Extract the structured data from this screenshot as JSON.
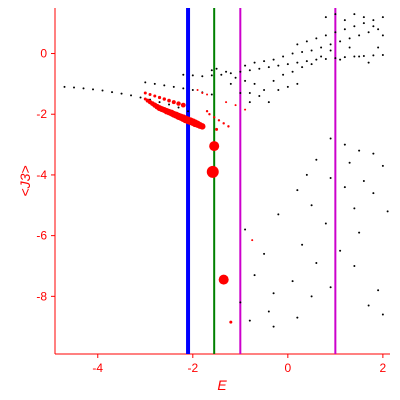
{
  "chart_data": {
    "type": "scatter",
    "xlabel": "E",
    "ylabel": "<J3>",
    "xlim": [
      -4.9,
      2.15
    ],
    "ylim": [
      -9.9,
      1.5
    ],
    "xticks": [
      -4,
      -2,
      0,
      2
    ],
    "xtick_labels": [
      "-4",
      "-2",
      "0",
      "2"
    ],
    "yticks": [
      0,
      -2,
      -4,
      -6,
      -8
    ],
    "ytick_labels": [
      "0",
      "-2",
      "-4",
      "-6",
      "-8"
    ],
    "grid": false,
    "axis_color": "#ff0000",
    "vertical_lines": [
      {
        "x": -2.1,
        "color": "#0000ff"
      },
      {
        "x": -1.55,
        "color": "#008000"
      },
      {
        "x": -1.0,
        "color": "#cc00cc"
      },
      {
        "x": 1.0,
        "color": "#cc00cc"
      }
    ],
    "series": [
      {
        "color": "#000000",
        "marker": "small-dot",
        "description_points": "black",
        "points": [
          [
            -4.7,
            -1.1
          ],
          [
            -4.5,
            -1.12
          ],
          [
            -4.3,
            -1.15
          ],
          [
            -4.1,
            -1.18
          ],
          [
            -3.9,
            -1.22
          ],
          [
            -3.7,
            -1.27
          ],
          [
            -3.5,
            -1.32
          ],
          [
            -3.3,
            -1.38
          ],
          [
            -3.1,
            -1.45
          ],
          [
            -2.9,
            -1.52
          ],
          [
            -2.7,
            -1.6
          ],
          [
            -2.5,
            -1.68
          ],
          [
            -2.3,
            -1.78
          ],
          [
            -2.1,
            -1.9
          ],
          [
            -3.0,
            -0.95
          ],
          [
            -2.8,
            -1.0
          ],
          [
            -2.6,
            -1.05
          ],
          [
            -2.4,
            -1.1
          ],
          [
            -2.2,
            -1.15
          ],
          [
            -2.0,
            -1.2
          ],
          [
            -1.8,
            -1.28
          ],
          [
            -1.6,
            -1.35
          ],
          [
            -2.2,
            -0.7
          ],
          [
            -2.0,
            -0.72
          ],
          [
            -1.8,
            -0.75
          ],
          [
            -1.6,
            -0.72
          ],
          [
            -1.4,
            -0.7
          ],
          [
            -1.2,
            -0.65
          ],
          [
            -1.0,
            -0.6
          ],
          [
            -0.8,
            -0.55
          ],
          [
            -0.6,
            -0.5
          ],
          [
            -0.4,
            -0.45
          ],
          [
            -0.2,
            -0.4
          ],
          [
            0.0,
            -0.35
          ],
          [
            0.2,
            -0.3
          ],
          [
            0.4,
            -0.25
          ],
          [
            0.6,
            -0.2
          ],
          [
            0.8,
            -0.18
          ],
          [
            1.0,
            -0.15
          ],
          [
            1.2,
            -0.12
          ],
          [
            1.4,
            -0.1
          ],
          [
            1.6,
            -0.08
          ],
          [
            1.8,
            -0.06
          ],
          [
            2.0,
            -0.05
          ],
          [
            -1.5,
            -0.5
          ],
          [
            -1.3,
            -0.6
          ],
          [
            -1.1,
            -0.8
          ],
          [
            -0.9,
            -0.9
          ],
          [
            -0.7,
            -1.0
          ],
          [
            -0.5,
            -1.2
          ],
          [
            -0.3,
            -0.9
          ],
          [
            -0.1,
            -0.7
          ],
          [
            0.1,
            -0.6
          ],
          [
            0.3,
            -0.45
          ],
          [
            0.5,
            -0.35
          ],
          [
            -0.9,
            -0.4
          ],
          [
            -0.7,
            -0.3
          ],
          [
            -0.5,
            -0.25
          ],
          [
            -0.3,
            -0.2
          ],
          [
            -0.1,
            -0.1
          ],
          [
            0.1,
            0.0
          ],
          [
            0.3,
            0.05
          ],
          [
            0.5,
            0.1
          ],
          [
            0.7,
            0.2
          ],
          [
            0.9,
            0.3
          ],
          [
            1.1,
            0.4
          ],
          [
            1.3,
            0.5
          ],
          [
            1.5,
            0.6
          ],
          [
            1.7,
            0.7
          ],
          [
            1.9,
            0.8
          ],
          [
            0.2,
            0.3
          ],
          [
            0.4,
            0.4
          ],
          [
            0.6,
            0.5
          ],
          [
            0.8,
            0.6
          ],
          [
            1.0,
            0.7
          ],
          [
            1.2,
            0.8
          ],
          [
            1.4,
            0.9
          ],
          [
            1.6,
            1.0
          ],
          [
            1.8,
            1.1
          ],
          [
            2.0,
            1.2
          ],
          [
            0.8,
            1.2
          ],
          [
            1.0,
            1.3
          ],
          [
            1.2,
            1.1
          ],
          [
            1.4,
            1.3
          ],
          [
            1.6,
            1.2
          ],
          [
            1.8,
            0.9
          ],
          [
            2.0,
            0.6
          ],
          [
            1.9,
            0.2
          ],
          [
            1.7,
            -0.3
          ],
          [
            1.5,
            -0.1
          ],
          [
            1.3,
            0.2
          ],
          [
            1.1,
            -0.2
          ],
          [
            0.9,
            0.1
          ],
          [
            0.7,
            -0.1
          ],
          [
            -0.8,
            -1.3
          ],
          [
            -0.6,
            -1.4
          ],
          [
            -0.4,
            -1.6
          ],
          [
            -0.2,
            -1.2
          ],
          [
            0.0,
            -1.1
          ],
          [
            0.2,
            -1.0
          ],
          [
            -1.6,
            -0.55
          ],
          [
            -1.2,
            -1.0
          ],
          [
            -1.0,
            -1.3
          ],
          [
            -0.8,
            -1.6
          ],
          [
            0.9,
            -2.8
          ],
          [
            1.2,
            -3.0
          ],
          [
            1.5,
            -3.2
          ],
          [
            1.8,
            -3.3
          ],
          [
            0.6,
            -3.5
          ],
          [
            1.3,
            -3.6
          ],
          [
            2.0,
            -3.7
          ],
          [
            0.4,
            -4.0
          ],
          [
            0.9,
            -4.1
          ],
          [
            1.6,
            -4.2
          ],
          [
            0.2,
            -4.5
          ],
          [
            1.2,
            -4.4
          ],
          [
            1.8,
            -4.6
          ],
          [
            0.5,
            -5.0
          ],
          [
            1.4,
            -5.1
          ],
          [
            2.1,
            -5.2
          ],
          [
            -0.2,
            -5.3
          ],
          [
            0.8,
            -5.6
          ],
          [
            1.5,
            -5.9
          ],
          [
            -0.9,
            -5.8
          ],
          [
            0.3,
            -6.3
          ],
          [
            1.1,
            -6.5
          ],
          [
            -0.5,
            -6.6
          ],
          [
            0.6,
            -6.9
          ],
          [
            1.4,
            -7.0
          ],
          [
            -0.7,
            -7.3
          ],
          [
            0.1,
            -7.5
          ],
          [
            0.9,
            -7.7
          ],
          [
            -0.3,
            -7.9
          ],
          [
            0.5,
            -8.0
          ],
          [
            -1.0,
            -8.2
          ],
          [
            -0.4,
            -8.5
          ],
          [
            0.2,
            -8.7
          ],
          [
            -0.8,
            -8.8
          ],
          [
            -0.3,
            -9.0
          ],
          [
            1.9,
            -7.8
          ],
          [
            1.7,
            -8.3
          ],
          [
            2.0,
            -8.6
          ]
        ]
      },
      {
        "color": "#ff0000",
        "marker": "circle",
        "points": [
          [
            -3.0,
            -1.3,
            1.5
          ],
          [
            -2.9,
            -1.35,
            1.5
          ],
          [
            -2.8,
            -1.4,
            1.5
          ],
          [
            -2.7,
            -1.45,
            1.6
          ],
          [
            -2.6,
            -1.5,
            1.7
          ],
          [
            -2.5,
            -1.55,
            1.8
          ],
          [
            -2.4,
            -1.6,
            2
          ],
          [
            -2.3,
            -1.65,
            2.2
          ],
          [
            -2.2,
            -1.7,
            2.4
          ],
          [
            -3.0,
            -1.5,
            1.5
          ],
          [
            -2.95,
            -1.55,
            2
          ],
          [
            -2.9,
            -1.6,
            2.2
          ],
          [
            -2.85,
            -1.65,
            2.4
          ],
          [
            -2.8,
            -1.7,
            2.6
          ],
          [
            -2.75,
            -1.75,
            2.8
          ],
          [
            -2.7,
            -1.8,
            3
          ],
          [
            -2.65,
            -1.83,
            3
          ],
          [
            -2.6,
            -1.86,
            3
          ],
          [
            -2.55,
            -1.9,
            3.2
          ],
          [
            -2.5,
            -1.93,
            3.2
          ],
          [
            -2.45,
            -1.96,
            3.4
          ],
          [
            -2.4,
            -2.0,
            3.4
          ],
          [
            -2.35,
            -2.03,
            3.5
          ],
          [
            -2.3,
            -2.07,
            3.6
          ],
          [
            -2.25,
            -2.1,
            3.6
          ],
          [
            -2.2,
            -2.13,
            3.8
          ],
          [
            -2.15,
            -2.17,
            3.8
          ],
          [
            -2.1,
            -2.2,
            3.8
          ],
          [
            -2.05,
            -2.23,
            3.8
          ],
          [
            -2.0,
            -2.26,
            3.8
          ],
          [
            -1.95,
            -2.3,
            3.8
          ],
          [
            -1.9,
            -2.33,
            3.6
          ],
          [
            -1.85,
            -2.37,
            3.4
          ],
          [
            -1.8,
            -2.4,
            3.2
          ],
          [
            -1.7,
            -1.9,
            1.2
          ],
          [
            -1.65,
            -2.0,
            1.2
          ],
          [
            -1.55,
            -2.1,
            1.2
          ],
          [
            -1.45,
            -2.2,
            1.2
          ],
          [
            -1.35,
            -2.3,
            1.2
          ],
          [
            -1.25,
            -2.4,
            1.2
          ],
          [
            -1.9,
            -1.2,
            1
          ],
          [
            -1.8,
            -1.3,
            1
          ],
          [
            -1.7,
            -1.35,
            1
          ],
          [
            -1.3,
            -1.6,
            1
          ],
          [
            -1.1,
            -1.7,
            1
          ],
          [
            -0.9,
            -1.85,
            1
          ],
          [
            -1.5,
            -2.5,
            1.5
          ],
          [
            -1.55,
            -3.05,
            5
          ],
          [
            -1.58,
            -3.9,
            6
          ],
          [
            -1.35,
            -7.45,
            5
          ],
          [
            -1.2,
            -8.85,
            1.5
          ],
          [
            -0.75,
            -6.15,
            1
          ]
        ]
      }
    ]
  }
}
